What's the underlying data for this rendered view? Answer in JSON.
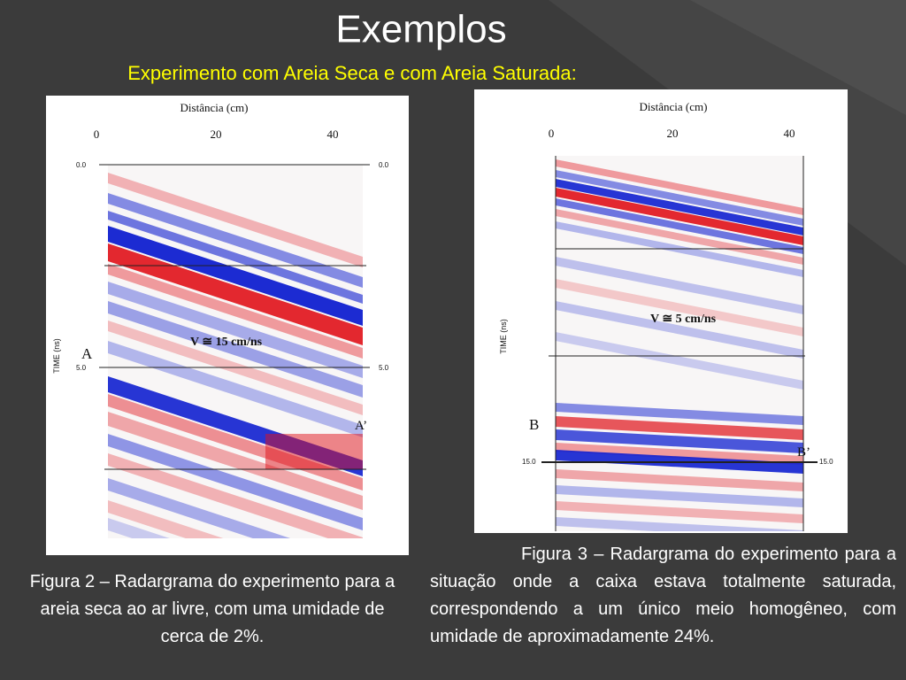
{
  "title": "Exemplos",
  "subtitle": "Experimento com Areia Seca e com Areia Saturada:",
  "figures": [
    {
      "x_label": "Distância (cm)",
      "x_ticks": [
        "0",
        "20",
        "40"
      ],
      "y_label": "TIME (ns)",
      "y_ticks_left": [
        "0.0",
        "5.0"
      ],
      "y_ticks_right": [
        "0.0",
        "5.0"
      ],
      "velocity": "V ≅ 15 cm/ns",
      "markers": [
        "A",
        "A’"
      ],
      "caption": "Figura 2 – Radargrama do experimento para a areia seca ao ar livre, com uma umidade de cerca de 2%."
    },
    {
      "x_label": "Distância (cm)",
      "x_ticks": [
        "0",
        "20",
        "40"
      ],
      "y_label": "TIME (ns)",
      "y_ticks_left": [
        "15.0"
      ],
      "y_ticks_right": [
        "15.0"
      ],
      "velocity": "V ≅ 5 cm/ns",
      "markers": [
        "B",
        "B’"
      ],
      "caption": "Figura 3 – Radargrama do experimento para a situação onde a caixa estava totalmente saturada, correspondendo a um único meio homogêneo, com umidade de aproximadamente 24%."
    }
  ]
}
